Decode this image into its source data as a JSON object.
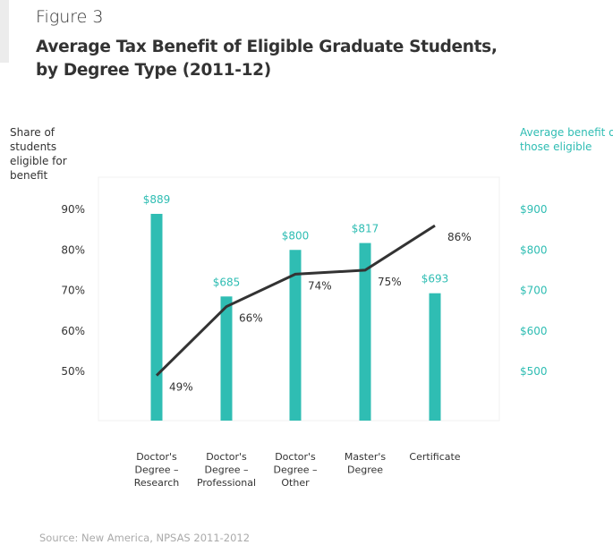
{
  "figure_label": "Figure 3",
  "title_line1": "Average Tax Benefit of Eligible Graduate Students,",
  "title_line2": "by Degree Type (2011-12)",
  "source": "Source: New America, NPSAS 2011-2012",
  "colors": {
    "bar": "#2fbdb3",
    "line": "#333333",
    "right_axis_text": "#2fbdb3",
    "text": "#333333"
  },
  "chart_data": {
    "type": "bar+line",
    "categories": [
      [
        "Doctor's",
        "Degree –",
        "Research"
      ],
      [
        "Doctor's",
        "Degree –",
        "Professional"
      ],
      [
        "Doctor's",
        "Degree –",
        "Other"
      ],
      [
        "Master's",
        "Degree"
      ],
      [
        "Certificate"
      ]
    ],
    "left_axis": {
      "label": [
        "Share of",
        "students",
        "eligible for",
        "benefit"
      ],
      "ticks": [
        "50%",
        "60%",
        "70%",
        "80%",
        "90%"
      ],
      "tick_values": [
        50,
        60,
        70,
        80,
        90
      ]
    },
    "right_axis": {
      "label": [
        "Average benefit of",
        "those eligible"
      ],
      "ticks": [
        "$500",
        "$600",
        "$700",
        "$800",
        "$900"
      ],
      "tick_values": [
        500,
        600,
        700,
        800,
        900
      ]
    },
    "bars": {
      "axis": "right",
      "values": [
        889,
        685,
        800,
        817,
        693
      ],
      "labels": [
        "$889",
        "$685",
        "$800",
        "$817",
        "$693"
      ]
    },
    "line": {
      "axis": "left",
      "values": [
        49,
        66,
        74,
        75,
        86
      ],
      "labels": [
        "49%",
        "66%",
        "74%",
        "75%",
        "86%"
      ]
    },
    "grid": false
  }
}
